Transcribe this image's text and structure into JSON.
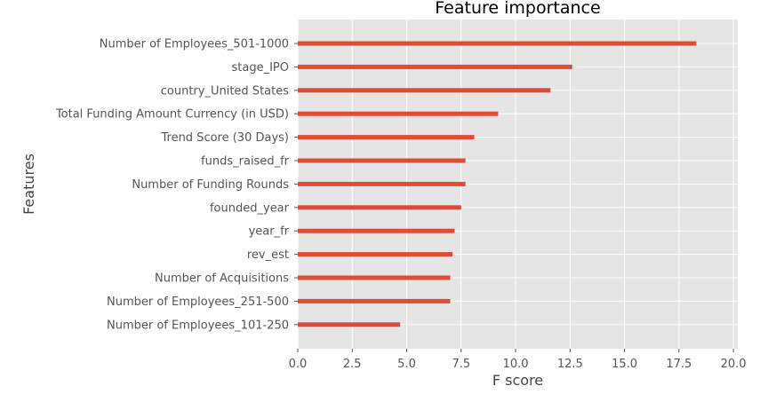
{
  "chart_data": {
    "type": "bar",
    "orientation": "horizontal",
    "title": "Feature importance",
    "xlabel": "F score",
    "ylabel": "Features",
    "xlim": [
      0,
      20.2
    ],
    "xticks": [
      0.0,
      2.5,
      5.0,
      7.5,
      10.0,
      12.5,
      15.0,
      17.5,
      20.0
    ],
    "xtick_labels": [
      "0.0",
      "2.5",
      "5.0",
      "7.5",
      "10.0",
      "12.5",
      "15.0",
      "17.5",
      "20.0"
    ],
    "grid": true,
    "bar_color": "#e24a33",
    "background_color": "#e5e5e5",
    "categories": [
      "Number of Employees_501-1000",
      "stage_IPO",
      "country_United States",
      "Total Funding Amount Currency (in USD)",
      "Trend Score (30 Days)",
      "funds_raised_fr",
      "Number of Funding Rounds",
      "founded_year",
      "year_fr",
      "rev_est",
      "Number of Acquisitions",
      "Number of Employees_251-500",
      "Number of Employees_101-250"
    ],
    "values": [
      18.3,
      12.6,
      11.6,
      9.2,
      8.1,
      7.7,
      7.7,
      7.5,
      7.2,
      7.1,
      7.0,
      7.0,
      4.7
    ]
  }
}
